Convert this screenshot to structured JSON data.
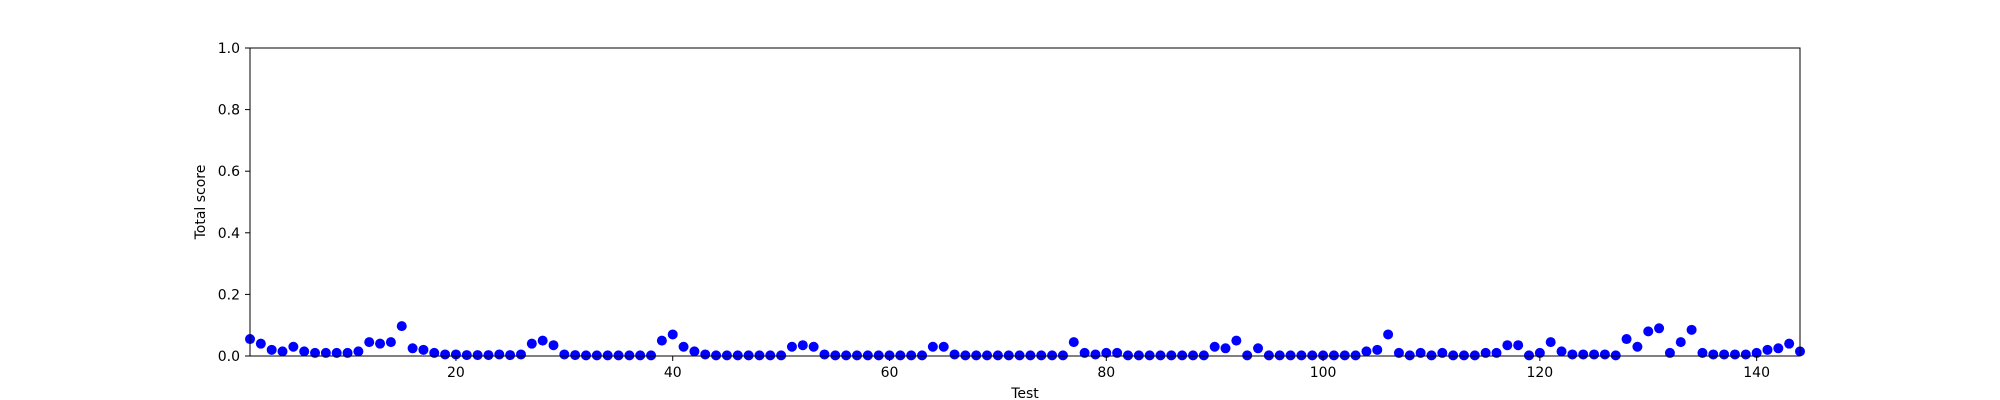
{
  "chart_data": {
    "type": "scatter",
    "title": "",
    "xlabel": "Test",
    "ylabel": "Total score",
    "xlim": [
      1,
      144
    ],
    "ylim": [
      0,
      1.0
    ],
    "xticks": [
      20,
      40,
      60,
      80,
      100,
      120,
      140
    ],
    "yticks": [
      0.0,
      0.2,
      0.4,
      0.6,
      0.8,
      1.0
    ],
    "xtick_labels": [
      "20",
      "40",
      "60",
      "80",
      "100",
      "120",
      "140"
    ],
    "ytick_labels": [
      "0.0",
      "0.2",
      "0.4",
      "0.6",
      "0.8",
      "1.0"
    ],
    "grid": false,
    "legend": "none",
    "marker_color": "#0000ff",
    "x": [
      1,
      2,
      3,
      4,
      5,
      6,
      7,
      8,
      9,
      10,
      11,
      12,
      13,
      14,
      15,
      16,
      17,
      18,
      19,
      20,
      21,
      22,
      23,
      24,
      25,
      26,
      27,
      28,
      29,
      30,
      31,
      32,
      33,
      34,
      35,
      36,
      37,
      38,
      39,
      40,
      41,
      42,
      43,
      44,
      45,
      46,
      47,
      48,
      49,
      50,
      51,
      52,
      53,
      54,
      55,
      56,
      57,
      58,
      59,
      60,
      61,
      62,
      63,
      64,
      65,
      66,
      67,
      68,
      69,
      70,
      71,
      72,
      73,
      74,
      75,
      76,
      77,
      78,
      79,
      80,
      81,
      82,
      83,
      84,
      85,
      86,
      87,
      88,
      89,
      90,
      91,
      92,
      93,
      94,
      95,
      96,
      97,
      98,
      99,
      100,
      101,
      102,
      103,
      104,
      105,
      106,
      107,
      108,
      109,
      110,
      111,
      112,
      113,
      114,
      115,
      116,
      117,
      118,
      119,
      120,
      121,
      122,
      123,
      124,
      125,
      126,
      127,
      128,
      129,
      130,
      131,
      132,
      133,
      134,
      135,
      136,
      137,
      138,
      139,
      140,
      141,
      142,
      143,
      144
    ],
    "y": [
      0.055,
      0.04,
      0.02,
      0.015,
      0.03,
      0.015,
      0.01,
      0.01,
      0.01,
      0.01,
      0.015,
      0.045,
      0.04,
      0.045,
      0.097,
      0.025,
      0.02,
      0.01,
      0.005,
      0.005,
      0.003,
      0.003,
      0.003,
      0.005,
      0.003,
      0.005,
      0.04,
      0.05,
      0.035,
      0.005,
      0.003,
      0.002,
      0.002,
      0.002,
      0.002,
      0.002,
      0.002,
      0.002,
      0.05,
      0.07,
      0.03,
      0.015,
      0.005,
      0.002,
      0.002,
      0.002,
      0.002,
      0.002,
      0.002,
      0.002,
      0.03,
      0.035,
      0.03,
      0.005,
      0.002,
      0.002,
      0.002,
      0.002,
      0.002,
      0.002,
      0.002,
      0.002,
      0.002,
      0.03,
      0.03,
      0.005,
      0.002,
      0.002,
      0.002,
      0.002,
      0.002,
      0.002,
      0.002,
      0.002,
      0.002,
      0.002,
      0.045,
      0.01,
      0.005,
      0.01,
      0.01,
      0.002,
      0.002,
      0.002,
      0.002,
      0.002,
      0.002,
      0.002,
      0.002,
      0.03,
      0.025,
      0.05,
      0.002,
      0.025,
      0.002,
      0.002,
      0.002,
      0.002,
      0.002,
      0.002,
      0.002,
      0.002,
      0.002,
      0.015,
      0.02,
      0.07,
      0.01,
      0.002,
      0.01,
      0.002,
      0.01,
      0.002,
      0.002,
      0.002,
      0.01,
      0.01,
      0.035,
      0.035,
      0.002,
      0.01,
      0.045,
      0.015,
      0.005,
      0.005,
      0.005,
      0.005,
      0.002,
      0.055,
      0.03,
      0.08,
      0.09,
      0.01,
      0.045,
      0.085,
      0.01,
      0.005,
      0.005,
      0.005,
      0.005,
      0.01,
      0.02,
      0.025,
      0.04,
      0.015
    ]
  }
}
